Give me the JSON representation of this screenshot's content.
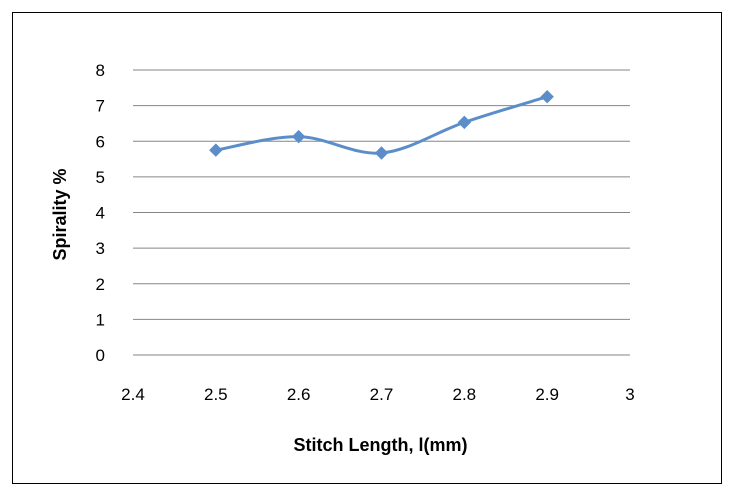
{
  "chart_data": {
    "type": "line",
    "title": "",
    "xlabel": "Stitch Length, l(mm)",
    "ylabel": "Spirality %",
    "xlim": [
      2.4,
      3
    ],
    "ylim": [
      0,
      8
    ],
    "x_ticks": [
      "2.4",
      "2.5",
      "2.6",
      "2.7",
      "2.8",
      "2.9",
      "3"
    ],
    "y_ticks": [
      "0",
      "1",
      "2",
      "3",
      "4",
      "5",
      "6",
      "7",
      "8"
    ],
    "grid": "horizontal",
    "legend": "none",
    "smooth": true,
    "series": [
      {
        "color": "#5b8ec9",
        "marker": "diamond",
        "x": [
          2.5,
          2.6,
          2.7,
          2.8,
          2.9
        ],
        "y": [
          5.75,
          6.13,
          5.67,
          6.53,
          7.25
        ]
      }
    ]
  }
}
